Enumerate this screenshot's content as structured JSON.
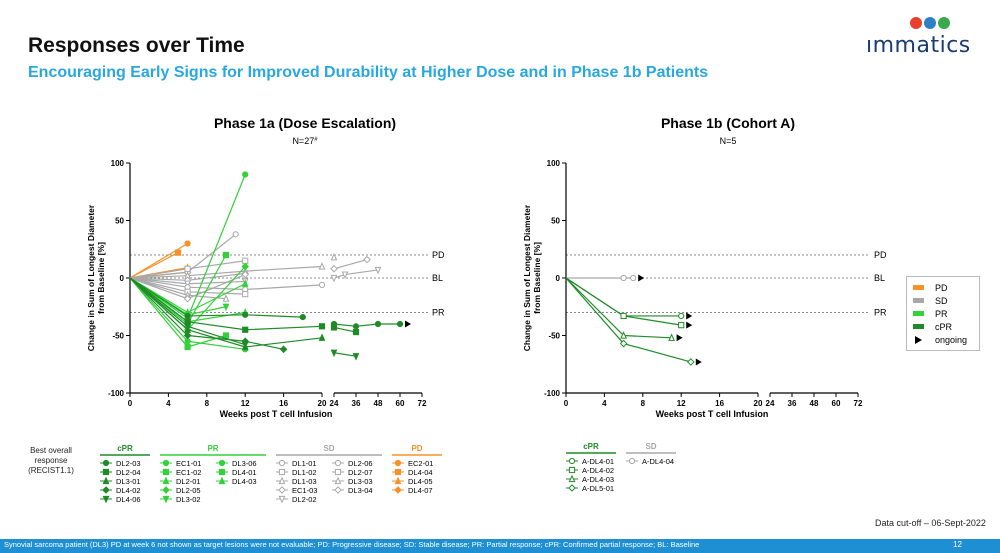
{
  "header": {
    "title": "Responses over Time",
    "subtitle": "Encouraging Early Signs for Improved Durability at Higher Dose and in Phase 1b Patients"
  },
  "logo": {
    "text": "ımmatics",
    "colors": [
      "#e8402c",
      "#2f7fc4",
      "#3aa94b"
    ]
  },
  "colors": {
    "PD": "#f5922a",
    "SD": "#a8a8a8",
    "PR": "#33d13a",
    "cPR": "#1f8b27",
    "accent": "#29a8e0",
    "footer": "#1f8fd4"
  },
  "legend": {
    "items": [
      {
        "label": "PD",
        "color": "#f5922a"
      },
      {
        "label": "SD",
        "color": "#a8a8a8"
      },
      {
        "label": "PR",
        "color": "#33d13a"
      },
      {
        "label": "cPR",
        "color": "#1f8b27"
      }
    ],
    "ongoing_label": "ongoing"
  },
  "best_overall_response_label": "Best overall response (RECIST1.1)",
  "cutoff": "Data cut-off – 06-Sept-2022",
  "footer": {
    "note": "Synovial sarcoma patient (DL3) PD at week 6 not shown as target lesions were not evaluable; PD: Progressive disease; SD: Stable disease; PR: Partial response; cPR: Confirmed partial response; BL: Baseline",
    "page": "12"
  },
  "chart_data": [
    {
      "type": "line",
      "title": "Phase 1a (Dose Escalation)",
      "subtitle": "N=27",
      "subtitle_sup": "#",
      "xlabel": "Weeks post T cell Infusion",
      "ylabel": "Change in Sum of Longest Diameter from Baseline [%]",
      "x_ticks": [
        "0",
        "4",
        "8",
        "12",
        "16",
        "20",
        "24",
        "36",
        "48",
        "60",
        "72"
      ],
      "y_ticks": [
        100,
        50,
        0,
        -50,
        -100
      ],
      "ylim": [
        -100,
        100
      ],
      "reference_lines": [
        {
          "label": "PD",
          "y": 20
        },
        {
          "label": "BL",
          "y": 0
        },
        {
          "label": "PR",
          "y": -30
        }
      ],
      "legend_groups": [
        {
          "name": "cPR",
          "color": "#1f8b27",
          "columns": [
            [
              "DL2-03",
              "DL2-04",
              "DL3-01",
              "DL4-02",
              "DL4-06"
            ]
          ]
        },
        {
          "name": "PR",
          "color": "#33d13a",
          "columns": [
            [
              "EC1-01",
              "EC1-02",
              "DL2-01",
              "DL2-05",
              "DL3-02"
            ],
            [
              "DL3-06",
              "DL4-01",
              "DL4-03"
            ]
          ]
        },
        {
          "name": "SD",
          "color": "#a8a8a8",
          "columns": [
            [
              "DL1-01",
              "DL1-02",
              "DL1-03",
              "EC1-03",
              "DL2-02"
            ],
            [
              "DL2-06",
              "DL2-07",
              "DL3-03",
              "DL3-04"
            ]
          ]
        },
        {
          "name": "PD",
          "color": "#f5922a",
          "columns": [
            [
              "EC2-01",
              "DL4-04",
              "DL4-05",
              "DL4-07"
            ]
          ]
        }
      ],
      "series": [
        {
          "response": "PD",
          "x": [
            0,
            6
          ],
          "y": [
            0,
            30
          ]
        },
        {
          "response": "PD",
          "x": [
            0,
            5
          ],
          "y": [
            0,
            22
          ]
        },
        {
          "response": "PD",
          "x": [
            0,
            6
          ],
          "y": [
            0,
            9
          ]
        },
        {
          "response": "PD",
          "x": [
            0,
            6
          ],
          "y": [
            0,
            5
          ]
        },
        {
          "response": "SD",
          "x": [
            0,
            6,
            11
          ],
          "y": [
            0,
            5,
            38
          ]
        },
        {
          "response": "SD",
          "x": [
            0,
            6,
            12
          ],
          "y": [
            0,
            8,
            15
          ]
        },
        {
          "response": "SD",
          "x": [
            0,
            6,
            12,
            20,
            24
          ],
          "y": [
            0,
            2,
            6,
            10,
            18
          ]
        },
        {
          "response": "SD",
          "x": [
            0,
            6,
            12,
            24,
            42
          ],
          "y": [
            0,
            -2,
            4,
            8,
            16
          ]
        },
        {
          "response": "SD",
          "x": [
            0,
            6,
            12,
            24,
            30,
            48
          ],
          "y": [
            0,
            -5,
            -3,
            0,
            3,
            7
          ]
        },
        {
          "response": "SD",
          "x": [
            0,
            6,
            12,
            20
          ],
          "y": [
            0,
            -8,
            -10,
            -6
          ]
        },
        {
          "response": "SD",
          "x": [
            0,
            6,
            12
          ],
          "y": [
            0,
            -12,
            -14
          ]
        },
        {
          "response": "SD",
          "x": [
            0,
            6,
            10
          ],
          "y": [
            0,
            -15,
            -18
          ]
        },
        {
          "response": "SD",
          "x": [
            0,
            6,
            12
          ],
          "y": [
            0,
            -18,
            3
          ]
        },
        {
          "response": "PR",
          "x": [
            0,
            6,
            12
          ],
          "y": [
            0,
            -35,
            90
          ]
        },
        {
          "response": "PR",
          "x": [
            0,
            6,
            10
          ],
          "y": [
            0,
            -40,
            20
          ]
        },
        {
          "response": "PR",
          "x": [
            0,
            6,
            12
          ],
          "y": [
            0,
            -30,
            -5
          ]
        },
        {
          "response": "PR",
          "x": [
            0,
            6,
            12
          ],
          "y": [
            0,
            -45,
            10
          ]
        },
        {
          "response": "PR",
          "x": [
            0,
            6,
            10
          ],
          "y": [
            0,
            -32,
            -25
          ]
        },
        {
          "response": "PR",
          "x": [
            0,
            6,
            12
          ],
          "y": [
            0,
            -55,
            -62
          ]
        },
        {
          "response": "PR",
          "x": [
            0,
            6,
            10
          ],
          "y": [
            0,
            -60,
            -50
          ]
        },
        {
          "response": "PR",
          "x": [
            0,
            6,
            12
          ],
          "y": [
            0,
            -38,
            -30
          ]
        },
        {
          "response": "cPR",
          "x": [
            0,
            6,
            12,
            18,
            24,
            36,
            48,
            60
          ],
          "y": [
            0,
            -33,
            -32,
            -34,
            -40,
            -42,
            -40,
            -40
          ],
          "ongoing": true
        },
        {
          "response": "cPR",
          "x": [
            0,
            6,
            12,
            20,
            24,
            36
          ],
          "y": [
            0,
            -38,
            -45,
            -42,
            -43,
            -47
          ]
        },
        {
          "response": "cPR",
          "x": [
            0,
            6,
            12,
            20
          ],
          "y": [
            0,
            -45,
            -60,
            -52
          ]
        },
        {
          "response": "cPR",
          "x": [
            0,
            6,
            12,
            16
          ],
          "y": [
            0,
            -50,
            -55,
            -62
          ]
        },
        {
          "response": "cPR",
          "x": [
            0,
            6,
            12,
            24,
            36
          ],
          "y": [
            0,
            -42,
            -58,
            -65,
            -68
          ]
        }
      ]
    },
    {
      "type": "line",
      "title": "Phase 1b (Cohort A)",
      "subtitle": "N=5",
      "xlabel": "Weeks post T cell Infusion",
      "ylabel": "Change in Sum of Longest Diameter from Baseline [%]",
      "x_ticks": [
        "0",
        "4",
        "8",
        "12",
        "16",
        "20",
        "24",
        "36",
        "48",
        "60",
        "72"
      ],
      "y_ticks": [
        100,
        50,
        0,
        -50,
        -100
      ],
      "ylim": [
        -100,
        100
      ],
      "reference_lines": [
        {
          "label": "PD",
          "y": 20
        },
        {
          "label": "BL",
          "y": 0
        },
        {
          "label": "PR",
          "y": -30
        }
      ],
      "legend_groups": [
        {
          "name": "cPR",
          "color": "#1f8b27",
          "columns": [
            [
              "A-DL4-01",
              "A-DL4-02",
              "A-DL4-03",
              "A-DL5-01"
            ]
          ]
        },
        {
          "name": "SD",
          "color": "#a8a8a8",
          "columns": [
            [
              "A-DL4-04"
            ]
          ]
        }
      ],
      "series": [
        {
          "response": "SD",
          "x": [
            0,
            6,
            7
          ],
          "y": [
            0,
            0,
            0
          ],
          "ongoing": true
        },
        {
          "response": "cPR",
          "x": [
            0,
            6,
            12
          ],
          "y": [
            0,
            -33,
            -33
          ],
          "ongoing": true
        },
        {
          "response": "cPR",
          "x": [
            0,
            6,
            12
          ],
          "y": [
            0,
            -33,
            -41
          ],
          "ongoing": true
        },
        {
          "response": "cPR",
          "x": [
            0,
            6,
            11
          ],
          "y": [
            0,
            -50,
            -52
          ],
          "ongoing": true
        },
        {
          "response": "cPR",
          "x": [
            0,
            6,
            13
          ],
          "y": [
            0,
            -57,
            -73
          ],
          "ongoing": true
        }
      ]
    }
  ]
}
